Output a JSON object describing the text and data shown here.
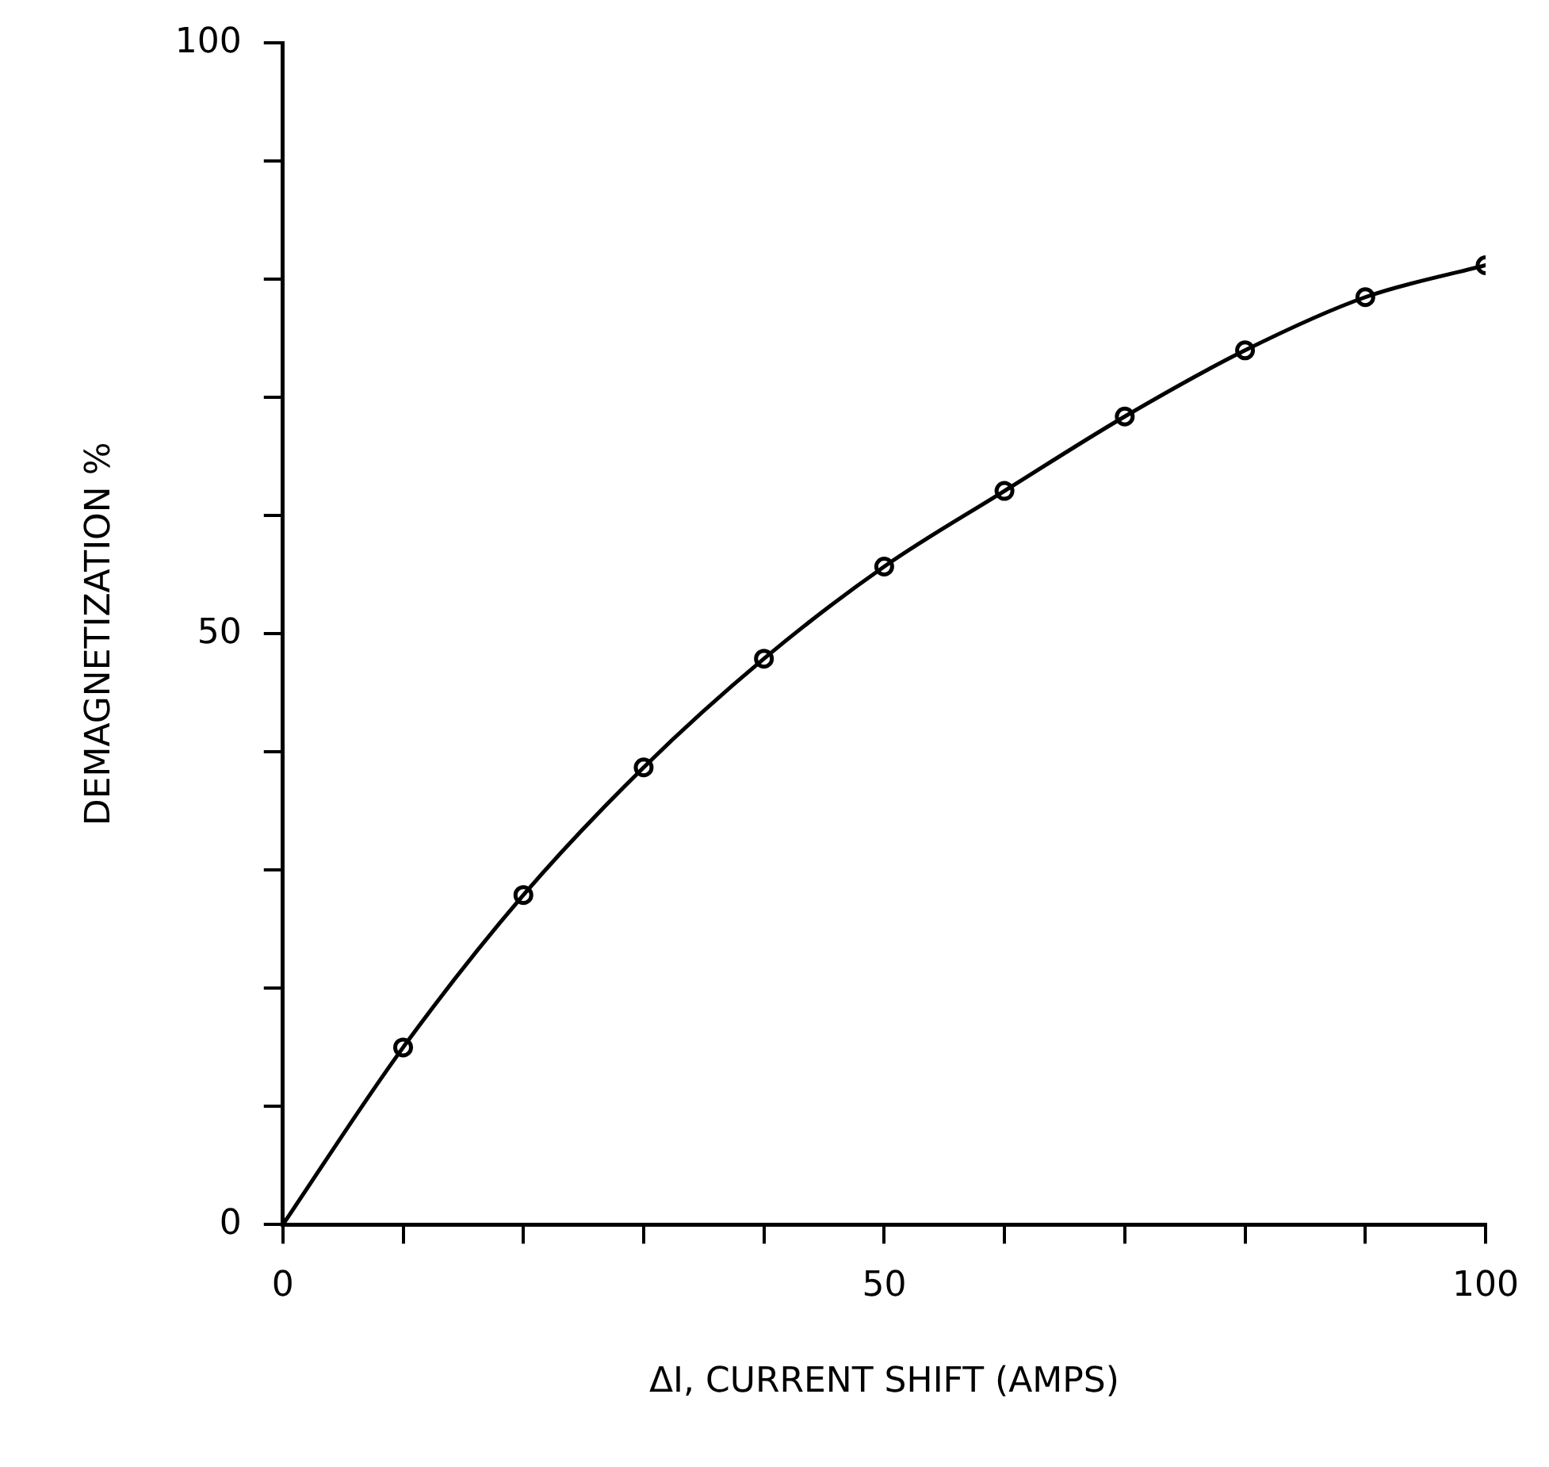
{
  "chart_data": {
    "type": "line",
    "xlabel": "ΔI, CURRENT SHIFT (AMPS)",
    "ylabel": "DEMAGNETIZATION %",
    "series": [
      {
        "type": "line",
        "color": "#000000",
        "marker": "none",
        "x": [
          0,
          10,
          20,
          30,
          40,
          50,
          60,
          70,
          80,
          90,
          100
        ],
        "values": [
          0,
          15,
          27.9,
          38.7,
          47.9,
          55.7,
          62.1,
          68.4,
          74,
          78.5,
          81.2
        ]
      },
      {
        "type": "scatter",
        "color": "#000000",
        "marker": "circle",
        "x": [
          10,
          20,
          30,
          40,
          50,
          60,
          70,
          80,
          90,
          100
        ],
        "values": [
          15,
          27.9,
          38.7,
          47.9,
          55.7,
          62.1,
          68.4,
          74,
          78.5,
          81.2
        ]
      }
    ],
    "xlim": [
      0,
      100
    ],
    "ylim": [
      0,
      100
    ],
    "xticks": [
      0,
      {
        "value": 10,
        "label": null
      },
      {
        "value": 20,
        "label": null
      },
      {
        "value": 30,
        "label": null
      },
      {
        "value": 40,
        "label": null
      },
      50,
      {
        "value": 60,
        "label": null
      },
      {
        "value": 70,
        "label": null
      },
      {
        "value": 80,
        "label": null
      },
      {
        "value": 90,
        "label": null
      },
      100
    ],
    "yticks": [
      0,
      {
        "value": 10,
        "label": null
      },
      {
        "value": 20,
        "label": null
      },
      {
        "value": 30,
        "label": null
      },
      {
        "value": 40,
        "label": null
      },
      50,
      {
        "value": 60,
        "label": null
      },
      {
        "value": 70,
        "label": null
      },
      {
        "value": 80,
        "label": null
      },
      {
        "value": 90,
        "label": null
      },
      100
    ],
    "grid": false,
    "legend": false
  }
}
